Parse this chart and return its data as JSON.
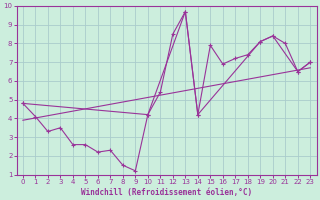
{
  "xlabel": "Windchill (Refroidissement éolien,°C)",
  "background_color": "#cceedd",
  "grid_color": "#aacccc",
  "line_color": "#993399",
  "spine_color": "#993399",
  "xlim": [
    -0.5,
    23.5
  ],
  "ylim": [
    1,
    10
  ],
  "xticks": [
    0,
    1,
    2,
    3,
    4,
    5,
    6,
    7,
    8,
    9,
    10,
    11,
    12,
    13,
    14,
    15,
    16,
    17,
    18,
    19,
    20,
    21,
    22,
    23
  ],
  "yticks": [
    1,
    2,
    3,
    4,
    5,
    6,
    7,
    8,
    9,
    10
  ],
  "jagged_x": [
    0,
    1,
    2,
    3,
    4,
    5,
    6,
    7,
    8,
    9,
    10,
    11,
    12,
    13,
    14,
    15,
    16,
    17,
    18,
    19,
    20,
    21,
    22,
    23
  ],
  "jagged_y": [
    4.8,
    4.1,
    3.3,
    3.5,
    2.6,
    2.6,
    2.2,
    2.3,
    1.5,
    1.2,
    4.2,
    5.4,
    8.5,
    9.7,
    4.2,
    7.9,
    6.9,
    7.2,
    7.4,
    8.1,
    8.4,
    8.0,
    6.5,
    7.0
  ],
  "smooth_x": [
    0,
    10,
    13,
    14,
    19,
    20,
    22,
    23
  ],
  "smooth_y": [
    4.8,
    4.2,
    9.7,
    4.2,
    8.1,
    8.4,
    6.5,
    7.0
  ],
  "trend_x": [
    0,
    23
  ],
  "trend_y": [
    3.9,
    6.7
  ]
}
